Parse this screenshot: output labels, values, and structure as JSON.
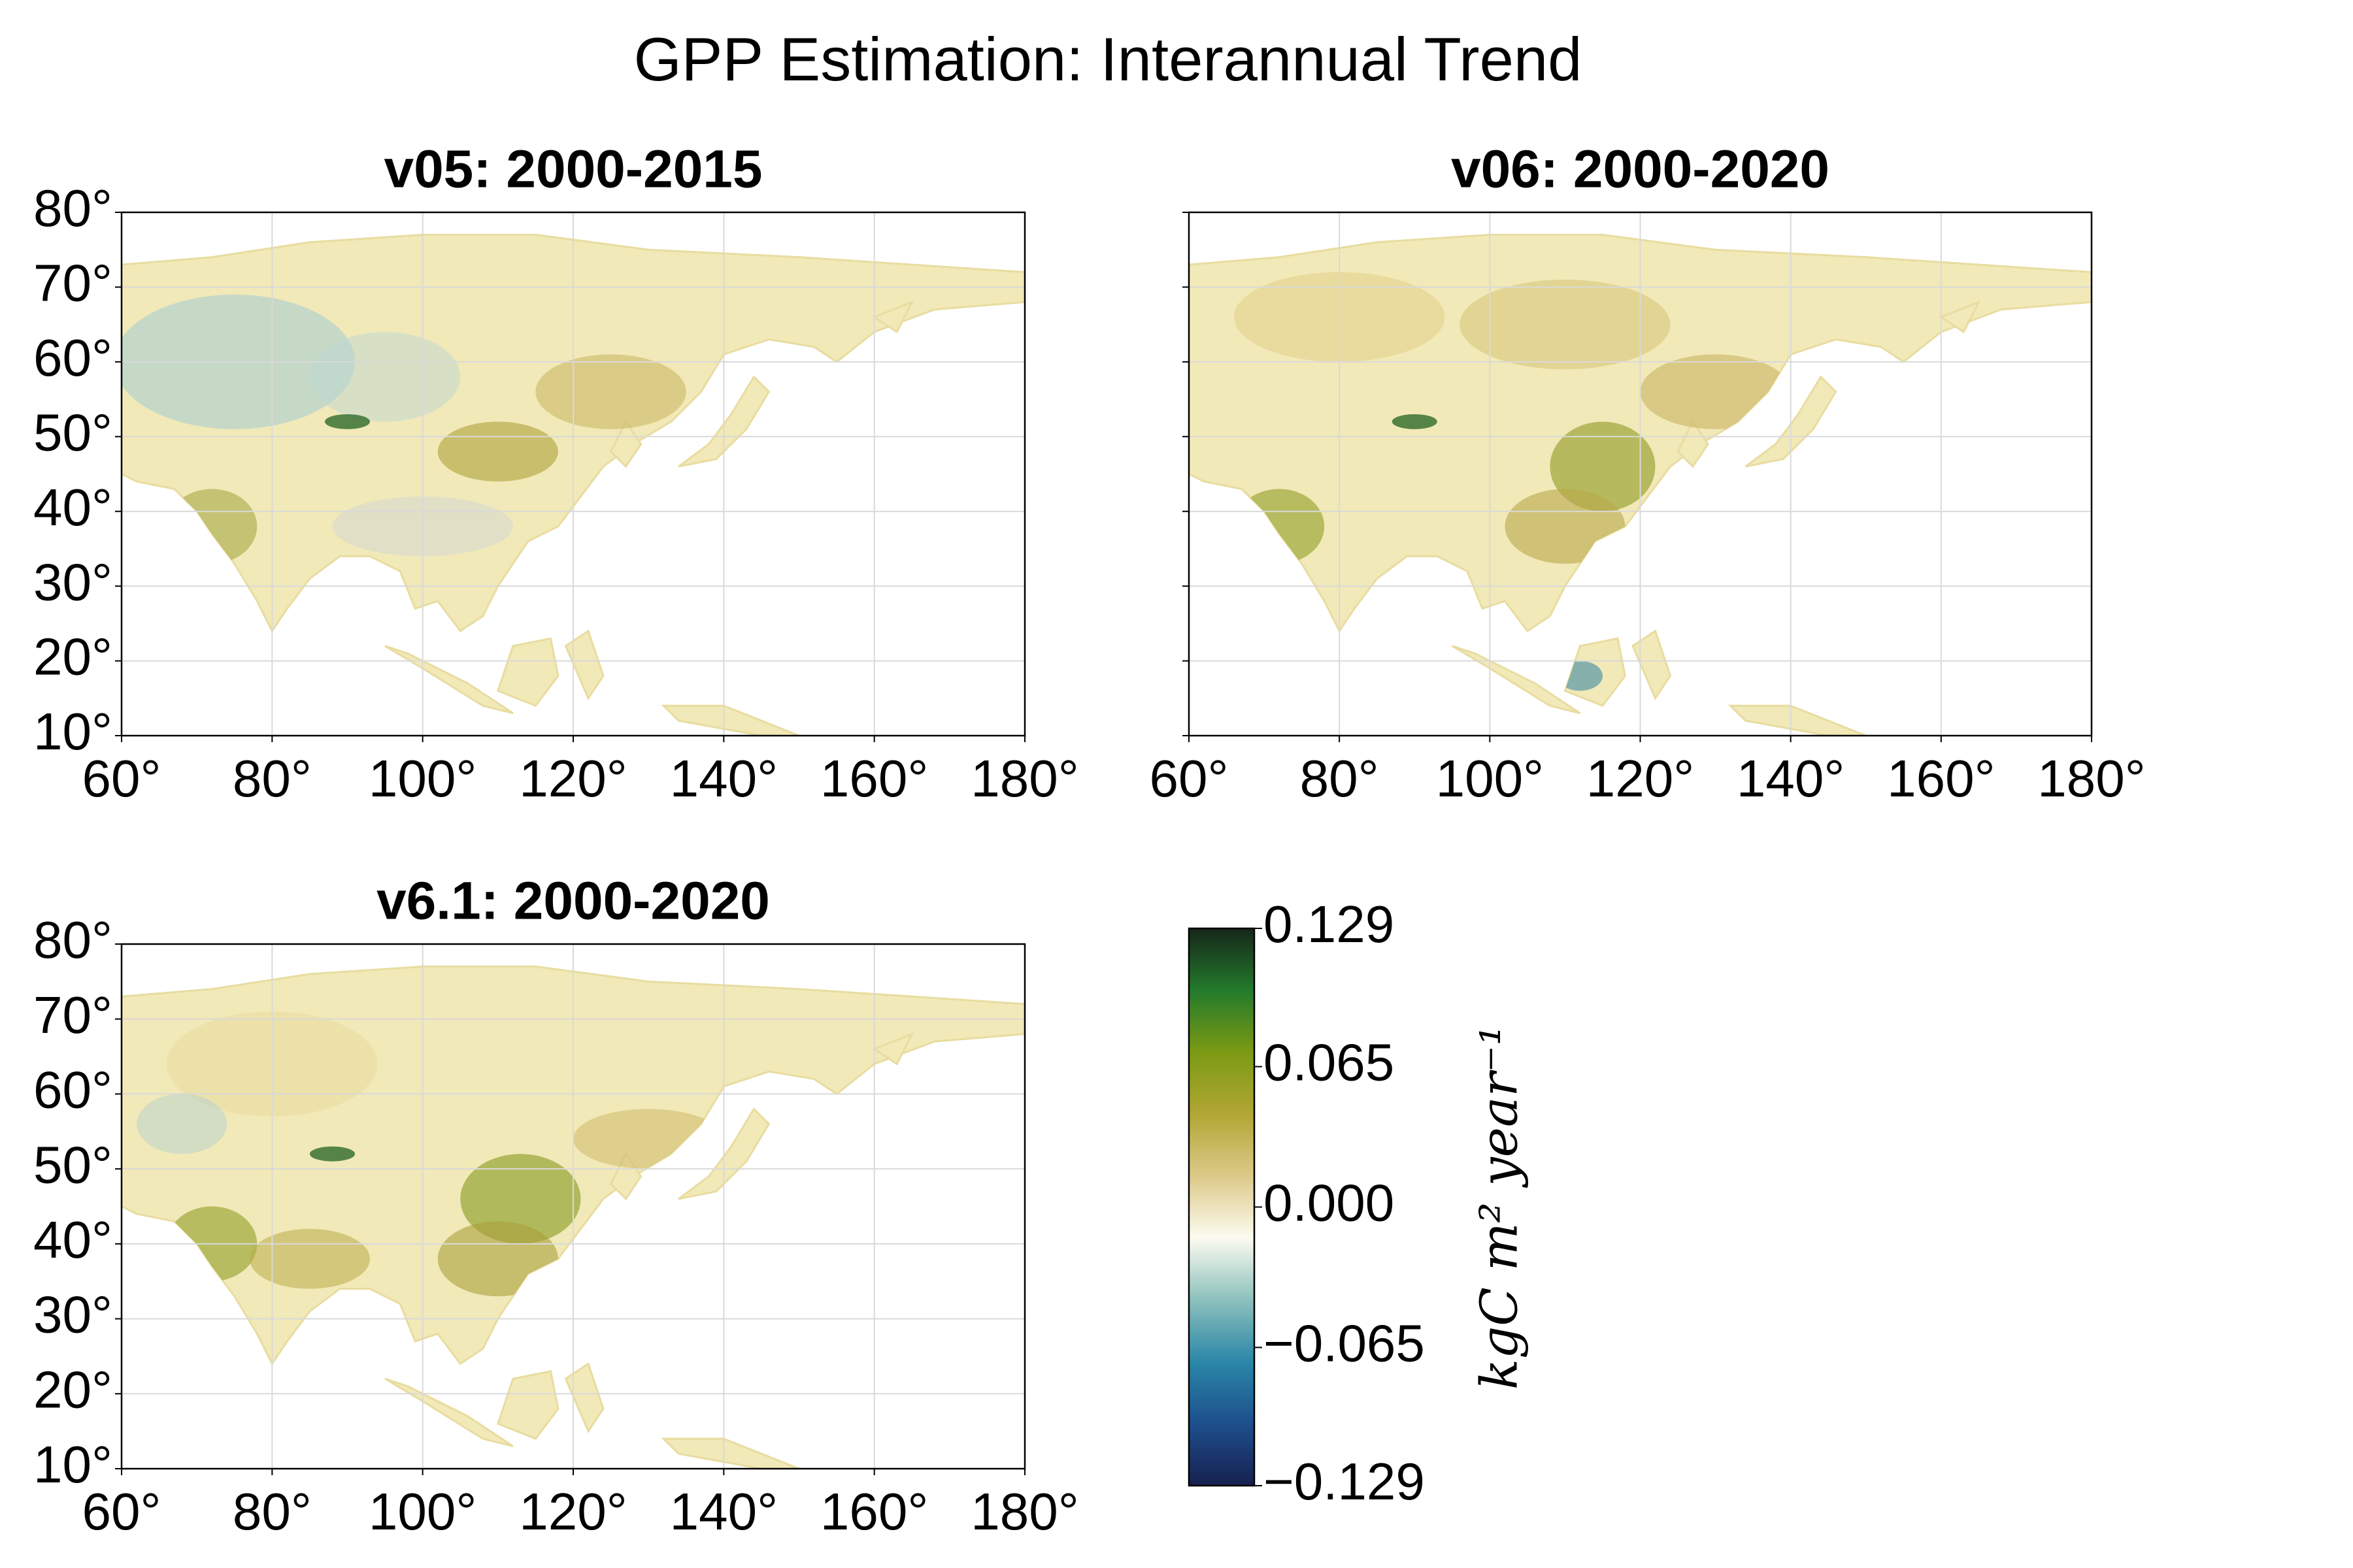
{
  "title": "GPP Estimation: Interannual Trend",
  "chart_data": [
    {
      "type": "map",
      "title": "v05: 2000-2015",
      "xlim": [
        60,
        180
      ],
      "ylim": [
        10,
        80
      ],
      "xticks": [
        {
          "value": 60,
          "label": "60°"
        },
        {
          "value": 80,
          "label": "80°"
        },
        {
          "value": 100,
          "label": "100°"
        },
        {
          "value": 120,
          "label": "120°"
        },
        {
          "value": 140,
          "label": "140°"
        },
        {
          "value": 160,
          "label": "160°"
        },
        {
          "value": 180,
          "label": "180°"
        }
      ],
      "yticks": [
        {
          "value": 10,
          "label": "10°"
        },
        {
          "value": 20,
          "label": "20°"
        },
        {
          "value": 30,
          "label": "30°"
        },
        {
          "value": 40,
          "label": "40°"
        },
        {
          "value": 50,
          "label": "50°"
        },
        {
          "value": 60,
          "label": "60°"
        },
        {
          "value": 70,
          "label": "70°"
        },
        {
          "value": 80,
          "label": "80°"
        }
      ],
      "grid": true
    },
    {
      "type": "map",
      "title": "v06: 2000-2020",
      "xlim": [
        60,
        180
      ],
      "ylim": [
        10,
        80
      ],
      "xticks": [
        {
          "value": 60,
          "label": "60°"
        },
        {
          "value": 80,
          "label": "80°"
        },
        {
          "value": 100,
          "label": "100°"
        },
        {
          "value": 120,
          "label": "120°"
        },
        {
          "value": 140,
          "label": "140°"
        },
        {
          "value": 160,
          "label": "160°"
        },
        {
          "value": 180,
          "label": "180°"
        }
      ],
      "yticks": [
        10,
        20,
        30,
        40,
        50,
        60,
        70,
        80
      ],
      "ytick_labels": false,
      "grid": true
    },
    {
      "type": "map",
      "title": "v6.1: 2000-2020",
      "xlim": [
        60,
        180
      ],
      "ylim": [
        10,
        80
      ],
      "xticks": [
        {
          "value": 60,
          "label": "60°"
        },
        {
          "value": 80,
          "label": "80°"
        },
        {
          "value": 100,
          "label": "100°"
        },
        {
          "value": 120,
          "label": "120°"
        },
        {
          "value": 140,
          "label": "140°"
        },
        {
          "value": 160,
          "label": "160°"
        },
        {
          "value": 180,
          "label": "180°"
        }
      ],
      "yticks": [
        {
          "value": 10,
          "label": "10°"
        },
        {
          "value": 20,
          "label": "20°"
        },
        {
          "value": 30,
          "label": "30°"
        },
        {
          "value": 40,
          "label": "40°"
        },
        {
          "value": 50,
          "label": "50°"
        },
        {
          "value": 60,
          "label": "60°"
        },
        {
          "value": 70,
          "label": "70°"
        },
        {
          "value": 80,
          "label": "80°"
        }
      ],
      "grid": true
    }
  ],
  "colorbar": {
    "label": "kgC m² year⁻¹",
    "clim": [
      -0.129,
      0.129
    ],
    "ticks": [
      {
        "value": -0.129,
        "label": "−0.129"
      },
      {
        "value": -0.065,
        "label": "−0.065"
      },
      {
        "value": 0,
        "label": "0.000"
      },
      0.065,
      0.129
    ],
    "colors": [
      "#17204f",
      "#1d4f8c",
      "#2a87a8",
      "#8cc0bc",
      "#fcfbf0",
      "#dcc989",
      "#b2a634",
      "#7b9a14",
      "#237a2c",
      "#16261a"
    ]
  }
}
